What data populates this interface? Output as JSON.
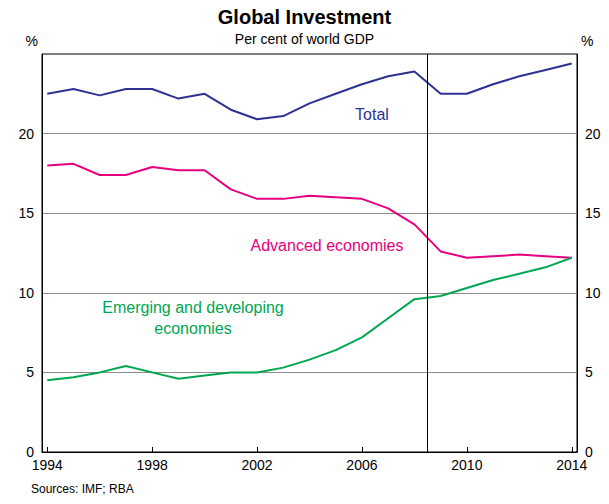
{
  "chart_data": {
    "type": "line",
    "title": "Global Investment",
    "subtitle": "Per cent of world GDP",
    "source": "Sources: IMF; RBA",
    "y_label": "%",
    "y2_label": "%",
    "x": [
      1994,
      1995,
      1996,
      1997,
      1998,
      1999,
      2000,
      2001,
      2002,
      2003,
      2004,
      2005,
      2006,
      2007,
      2008,
      2009,
      2010,
      2011,
      2012,
      2013,
      2014
    ],
    "series": [
      {
        "name": "Total",
        "color": "#2e3192",
        "values": [
          22.5,
          22.8,
          22.4,
          22.8,
          22.8,
          22.2,
          22.5,
          21.5,
          20.9,
          21.1,
          21.9,
          22.5,
          23.1,
          23.6,
          23.9,
          22.5,
          22.5,
          23.1,
          23.6,
          24.0,
          24.4
        ]
      },
      {
        "name": "Advanced economies",
        "color": "#e6007e",
        "values": [
          18.0,
          18.1,
          17.4,
          17.4,
          17.9,
          17.7,
          17.7,
          16.5,
          15.9,
          15.9,
          16.1,
          16.0,
          15.9,
          15.3,
          14.3,
          12.6,
          12.2,
          12.3,
          12.4,
          12.3,
          12.2
        ]
      },
      {
        "name": "Emerging and developing\neconomies",
        "color": "#00a651",
        "values": [
          4.5,
          4.7,
          5.0,
          5.4,
          5.0,
          4.6,
          4.8,
          5.0,
          5.0,
          5.3,
          5.8,
          6.4,
          7.2,
          8.4,
          9.6,
          9.8,
          10.3,
          10.8,
          11.2,
          11.6,
          12.2
        ]
      }
    ],
    "xlim": [
      1993.8,
      2014.2
    ],
    "xticks": [
      1994,
      1998,
      2002,
      2006,
      2010,
      2014
    ],
    "ylim": [
      0,
      25
    ],
    "yticks": [
      0,
      5,
      10,
      15,
      20
    ],
    "y2lim": [
      0,
      25
    ],
    "y2ticks": [
      0,
      5,
      10,
      15,
      20
    ],
    "grid": true,
    "vertical_line": 2008.5
  }
}
